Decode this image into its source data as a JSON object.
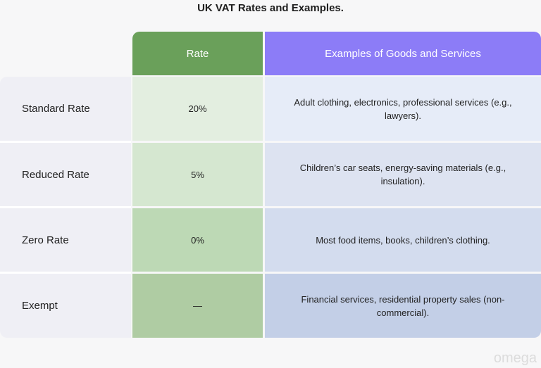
{
  "title": "UK VAT Rates and Examples.",
  "headers": {
    "rate": "Rate",
    "examples": "Examples of Goods and Services"
  },
  "rows": [
    {
      "label": "Standard Rate",
      "rate": "20%",
      "examples": "Adult clothing, electronics, professional services (e.g., lawyers)."
    },
    {
      "label": "Reduced Rate",
      "rate": "5%",
      "examples": "Children’s car seats, energy-saving materials (e.g., insulation)."
    },
    {
      "label": "Zero Rate",
      "rate": "0%",
      "examples": "Most food items, books, children’s clothing."
    },
    {
      "label": "Exempt",
      "rate": "—",
      "examples": "Financial services, residential property sales (non-commercial)."
    }
  ],
  "colors": {
    "rate_header": "#6aa05a",
    "examples_header": "#8c7cf7",
    "rate_cells": [
      "#e3eee0",
      "#d5e7d0",
      "#bdd9b5",
      "#afcca3"
    ],
    "example_cells": [
      "#e6ecf8",
      "#dde3f1",
      "#d3dcee",
      "#c3cfe7"
    ]
  },
  "logo": "omega"
}
